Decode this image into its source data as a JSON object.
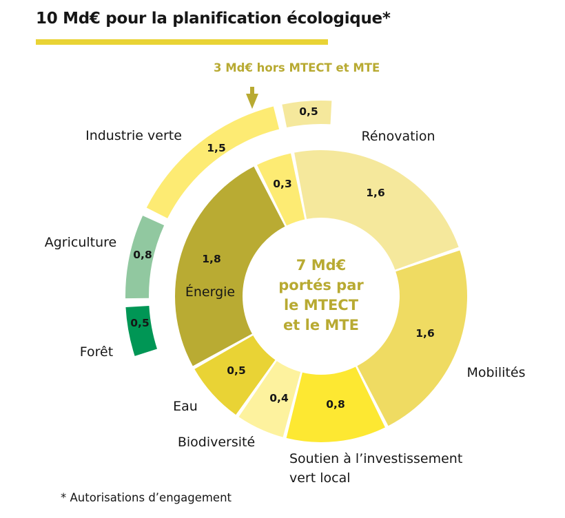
{
  "header": {
    "title": "10 Md€ pour la planification écologique*",
    "rule_color": "#e9d335"
  },
  "outer_note": "3 Md€ hors MTECT et MTE",
  "center_text": [
    "7 Md€",
    "portés par",
    "le MTECT",
    "et le MTE"
  ],
  "footnote": "* Autorisations d’engagement",
  "chart_data": {
    "type": "pie",
    "subtype": "nested-donut",
    "title": "10 Md€ pour la planification écologique*",
    "unit": "Md€",
    "total": 10,
    "rings": [
      {
        "name": "inner",
        "description": "7 Md€ portés par le MTECT et le MTE",
        "total": 7,
        "slices": [
          {
            "label": "",
            "value": 0.3,
            "value_label": "0,3",
            "color": "#fdeb73"
          },
          {
            "label": "Rénovation",
            "value": 1.6,
            "value_label": "1,6",
            "color": "#f5e89c"
          },
          {
            "label": "Mobilités",
            "value": 1.6,
            "value_label": "1,6",
            "color": "#efdb62"
          },
          {
            "label": "Soutien à l’investissement vert local",
            "label_lines": [
              "Soutien à l’investissement",
              "vert local"
            ],
            "value": 0.8,
            "value_label": "0,8",
            "color": "#fde832"
          },
          {
            "label": "Biodiversité",
            "value": 0.4,
            "value_label": "0,4",
            "color": "#fdf29e"
          },
          {
            "label": "Eau",
            "value": 0.5,
            "value_label": "0,5",
            "color": "#e9d335"
          },
          {
            "label": "Énergie",
            "value": 1.8,
            "value_label": "1,8",
            "color": "#b9ab33"
          }
        ]
      },
      {
        "name": "outer",
        "description": "3 Md€ hors MTECT et MTE",
        "total": 3.3,
        "slices": [
          {
            "label": "",
            "value": 0.5,
            "value_label": "0,5",
            "color": "#f5e89c"
          },
          {
            "label": "Industrie verte",
            "value": 1.5,
            "value_label": "1,5",
            "color": "#fdeb73"
          },
          {
            "label": "Agriculture",
            "value": 0.8,
            "value_label": "0,8",
            "color": "#91c8a0"
          },
          {
            "label": "Forêt",
            "value": 0.5,
            "value_label": "0,5",
            "color": "#009655"
          }
        ]
      }
    ]
  }
}
